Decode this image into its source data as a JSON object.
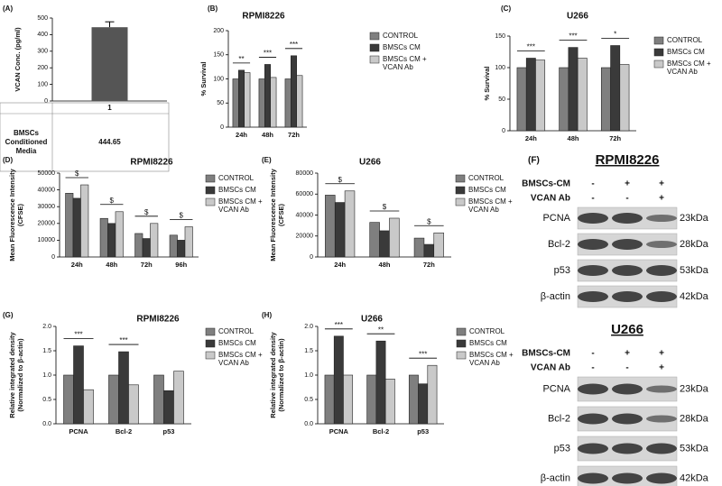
{
  "chart_data": [
    {
      "type": "bar",
      "panel": "(A)",
      "ylabel": "VCAN Conc. (pg/ml)",
      "categories": [
        "1"
      ],
      "values": [
        444.65
      ],
      "color": "#555555",
      "row_label": "BMSCs Conditioned Media",
      "ylim": [
        0,
        500
      ],
      "yticks": [
        0,
        100,
        200,
        300,
        400,
        500
      ]
    },
    {
      "type": "bar",
      "panel": "(B)",
      "title": "RPMI8226",
      "ylabel": "% Survival",
      "categories": [
        "24h",
        "48h",
        "72h"
      ],
      "series": [
        {
          "name": "CONTROL",
          "color": "#7f7f7f",
          "values": [
            100,
            100,
            100
          ]
        },
        {
          "name": "BMSCs CM",
          "color": "#3a3a3a",
          "values": [
            118,
            130,
            148
          ]
        },
        {
          "name": "BMSCs CM + VCAN Ab",
          "color": "#c9c9c9",
          "values": [
            113,
            103,
            107
          ]
        }
      ],
      "ylim": [
        0,
        200
      ],
      "yticks": [
        0,
        50,
        100,
        150,
        200
      ],
      "annotations": [
        {
          "text": "**",
          "category": "24h"
        },
        {
          "text": "***",
          "category": "48h"
        },
        {
          "text": "***",
          "category": "72h"
        }
      ]
    },
    {
      "type": "bar",
      "panel": "(C)",
      "title": "U266",
      "ylabel": "% Survival",
      "categories": [
        "24h",
        "48h",
        "72h"
      ],
      "series": [
        {
          "name": "CONTROL",
          "color": "#7f7f7f",
          "values": [
            100,
            100,
            100
          ]
        },
        {
          "name": "BMSCs CM",
          "color": "#3a3a3a",
          "values": [
            115,
            132,
            135
          ]
        },
        {
          "name": "BMSCs CM + VCAN Ab",
          "color": "#c9c9c9",
          "values": [
            112,
            115,
            105
          ]
        }
      ],
      "ylim": [
        0,
        150
      ],
      "yticks": [
        0,
        50,
        100,
        150
      ],
      "annotations": [
        {
          "text": "***",
          "category": "24h"
        },
        {
          "text": "***",
          "category": "48h"
        },
        {
          "text": "*",
          "category": "72h"
        }
      ]
    },
    {
      "type": "bar",
      "panel": "(D)",
      "title": "RPMI8226",
      "ylabel": [
        "Mean Fluorescence Intensity",
        "(CFSE)"
      ],
      "categories": [
        "24h",
        "48h",
        "72h",
        "96h"
      ],
      "series": [
        {
          "name": "CONTROL",
          "color": "#7f7f7f",
          "values": [
            38000,
            23000,
            14000,
            13000
          ]
        },
        {
          "name": "BMSCs CM",
          "color": "#3a3a3a",
          "values": [
            35000,
            20000,
            11000,
            10000
          ]
        },
        {
          "name": "BMSCs CM + VCAN Ab",
          "color": "#c9c9c9",
          "values": [
            43000,
            27000,
            20000,
            18000
          ]
        }
      ],
      "ylim": [
        0,
        50000
      ],
      "yticks": [
        0,
        10000,
        20000,
        30000,
        40000,
        50000
      ],
      "annotations": [
        {
          "text": "$",
          "category": "24h"
        },
        {
          "text": "$",
          "category": "48h"
        },
        {
          "text": "$",
          "category": "72h"
        },
        {
          "text": "$",
          "category": "96h"
        }
      ]
    },
    {
      "type": "bar",
      "panel": "(E)",
      "title": "U266",
      "ylabel": [
        "Mean Fluorescence Intensity",
        "(CFSE)"
      ],
      "categories": [
        "24h",
        "48h",
        "72h"
      ],
      "series": [
        {
          "name": "CONTROL",
          "color": "#7f7f7f",
          "values": [
            59000,
            33000,
            18000
          ]
        },
        {
          "name": "BMSCs CM",
          "color": "#3a3a3a",
          "values": [
            52000,
            25000,
            12000
          ]
        },
        {
          "name": "BMSCs CM + VCAN Ab",
          "color": "#c9c9c9",
          "values": [
            63000,
            37000,
            23000
          ]
        }
      ],
      "ylim": [
        0,
        80000
      ],
      "yticks": [
        0,
        20000,
        40000,
        60000,
        80000
      ],
      "annotations": [
        {
          "text": "$",
          "category": "24h"
        },
        {
          "text": "$",
          "category": "48h"
        },
        {
          "text": "$",
          "category": "72h"
        }
      ]
    },
    {
      "type": "bar",
      "panel": "(G)",
      "title": "RPMI8226",
      "ylabel": [
        "Relative integrated density",
        "(Normalized to β-actin)"
      ],
      "categories": [
        "PCNA",
        "Bcl-2",
        "p53"
      ],
      "series": [
        {
          "name": "CONTROL",
          "color": "#7f7f7f",
          "values": [
            1,
            1,
            1
          ]
        },
        {
          "name": "BMSCs CM",
          "color": "#3a3a3a",
          "values": [
            1.6,
            1.48,
            0.68
          ]
        },
        {
          "name": "BMSCs CM + VCAN Ab",
          "color": "#c9c9c9",
          "values": [
            0.7,
            0.8,
            1.08
          ]
        }
      ],
      "ylim": [
        0,
        2
      ],
      "yticks": [
        {
          "value": 0,
          "label": "0.0"
        },
        0.5,
        {
          "value": 1,
          "label": "1.0"
        },
        1.5,
        {
          "value": 2,
          "label": "2.0"
        }
      ],
      "annotations": [
        {
          "text": "***",
          "category": "PCNA"
        },
        {
          "text": "***",
          "category": "Bcl-2"
        }
      ]
    },
    {
      "type": "bar",
      "panel": "(H)",
      "title": "U266",
      "ylabel": [
        "Relative integrated density",
        "(Normalized to β-actin)"
      ],
      "categories": [
        "PCNA",
        "Bcl-2",
        "p53"
      ],
      "series": [
        {
          "name": "CONTROL",
          "color": "#7f7f7f",
          "values": [
            1,
            1,
            1
          ]
        },
        {
          "name": "BMSCs CM",
          "color": "#3a3a3a",
          "values": [
            1.8,
            1.7,
            0.82
          ]
        },
        {
          "name": "BMSCs CM + VCAN Ab",
          "color": "#c9c9c9",
          "values": [
            1,
            0.92,
            1.2
          ]
        }
      ],
      "ylim": [
        0,
        2
      ],
      "yticks": [
        {
          "value": 0,
          "label": "0.0"
        },
        0.5,
        {
          "value": 1,
          "label": "1.0"
        },
        1.5,
        {
          "value": 2,
          "label": "2.0"
        }
      ],
      "annotations": [
        {
          "text": "***",
          "category": "PCNA"
        },
        {
          "text": "**",
          "category": "Bcl-2"
        },
        {
          "text": "***",
          "category": "p53"
        }
      ]
    }
  ],
  "western_blot": {
    "panel": "(F)",
    "blots": [
      {
        "title": "RPMI8226",
        "treatments": [
          {
            "name": "BMSCs-CM",
            "lanes": [
              "-",
              "+",
              "+"
            ]
          },
          {
            "name": "VCAN Ab",
            "lanes": [
              "-",
              "-",
              "+"
            ]
          }
        ],
        "bands": [
          {
            "name": "PCNA",
            "size": "23kDa"
          },
          {
            "name": "Bcl-2",
            "size": "28kDa"
          },
          {
            "name": "p53",
            "size": "53kDa"
          },
          {
            "name": "β-actin",
            "size": "42kDa"
          }
        ]
      },
      {
        "title": "U266",
        "treatments": [
          {
            "name": "BMSCs-CM",
            "lanes": [
              "-",
              "+",
              "+"
            ]
          },
          {
            "name": "VCAN Ab",
            "lanes": [
              "-",
              "-",
              "+"
            ]
          }
        ],
        "bands": [
          {
            "name": "PCNA",
            "size": "23kDa"
          },
          {
            "name": "Bcl-2",
            "size": "28kDa"
          },
          {
            "name": "p53",
            "size": "53kDa"
          },
          {
            "name": "β-actin",
            "size": "42kDa"
          }
        ]
      }
    ]
  }
}
